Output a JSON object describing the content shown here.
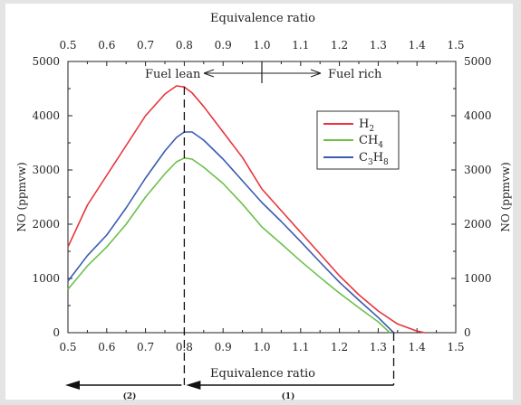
{
  "chart_data": {
    "type": "line",
    "title": "",
    "xlabel_top": "Equivalence ratio",
    "xlabel_bottom": "Equivalence ratio",
    "ylabel_left": "NO (ppmvw)",
    "ylabel_right": "NO (ppmvw)",
    "xlim": [
      0.5,
      1.5
    ],
    "ylim": [
      0,
      5000
    ],
    "x_ticks": [
      "0.5",
      "0.6",
      "0.7",
      "0.8",
      "0.9",
      "1.0",
      "1.1",
      "1.2",
      "1.3",
      "1.4",
      "1.5"
    ],
    "y_ticks": [
      "0",
      "1000",
      "2000",
      "3000",
      "4000",
      "5000"
    ],
    "grid": false,
    "legend_position": "upper-right",
    "series": [
      {
        "name": "H2",
        "name_base": "H",
        "name_sub": "2",
        "color": "#e8343c",
        "x": [
          0.5,
          0.55,
          0.6,
          0.65,
          0.7,
          0.75,
          0.78,
          0.8,
          0.82,
          0.85,
          0.9,
          0.95,
          1.0,
          1.05,
          1.1,
          1.15,
          1.2,
          1.25,
          1.3,
          1.35,
          1.4,
          1.42
        ],
        "y": [
          1580,
          2350,
          2900,
          3450,
          4000,
          4400,
          4550,
          4530,
          4420,
          4170,
          3700,
          3230,
          2650,
          2250,
          1850,
          1450,
          1050,
          700,
          400,
          160,
          30,
          0
        ]
      },
      {
        "name": "CH4",
        "name_base": "CH",
        "name_sub": "4",
        "color": "#6cc04a",
        "x": [
          0.5,
          0.55,
          0.6,
          0.65,
          0.7,
          0.75,
          0.78,
          0.8,
          0.82,
          0.85,
          0.9,
          0.95,
          1.0,
          1.05,
          1.1,
          1.15,
          1.2,
          1.25,
          1.3,
          1.33
        ],
        "y": [
          800,
          1230,
          1580,
          2000,
          2500,
          2930,
          3150,
          3220,
          3200,
          3050,
          2750,
          2370,
          1950,
          1640,
          1320,
          1020,
          730,
          460,
          200,
          0
        ]
      },
      {
        "name": "C3H8",
        "name_base": "C",
        "name_sub": "3",
        "name_mid": "H",
        "name_sub2": "8",
        "color": "#3a5bb0",
        "x": [
          0.5,
          0.55,
          0.6,
          0.65,
          0.7,
          0.75,
          0.78,
          0.8,
          0.82,
          0.85,
          0.9,
          0.95,
          1.0,
          1.05,
          1.1,
          1.15,
          1.2,
          1.25,
          1.3,
          1.34
        ],
        "y": [
          950,
          1420,
          1800,
          2300,
          2850,
          3350,
          3600,
          3700,
          3700,
          3550,
          3200,
          2800,
          2400,
          2050,
          1680,
          1300,
          930,
          600,
          280,
          0
        ]
      }
    ],
    "annotations": {
      "fuel_lean": "Fuel lean",
      "fuel_rich": "Fuel rich",
      "region_left": "(2)",
      "region_right": "(1)",
      "dashed_lines_x": [
        0.8,
        1.34
      ],
      "fuel_divider_x": 1.0
    }
  }
}
